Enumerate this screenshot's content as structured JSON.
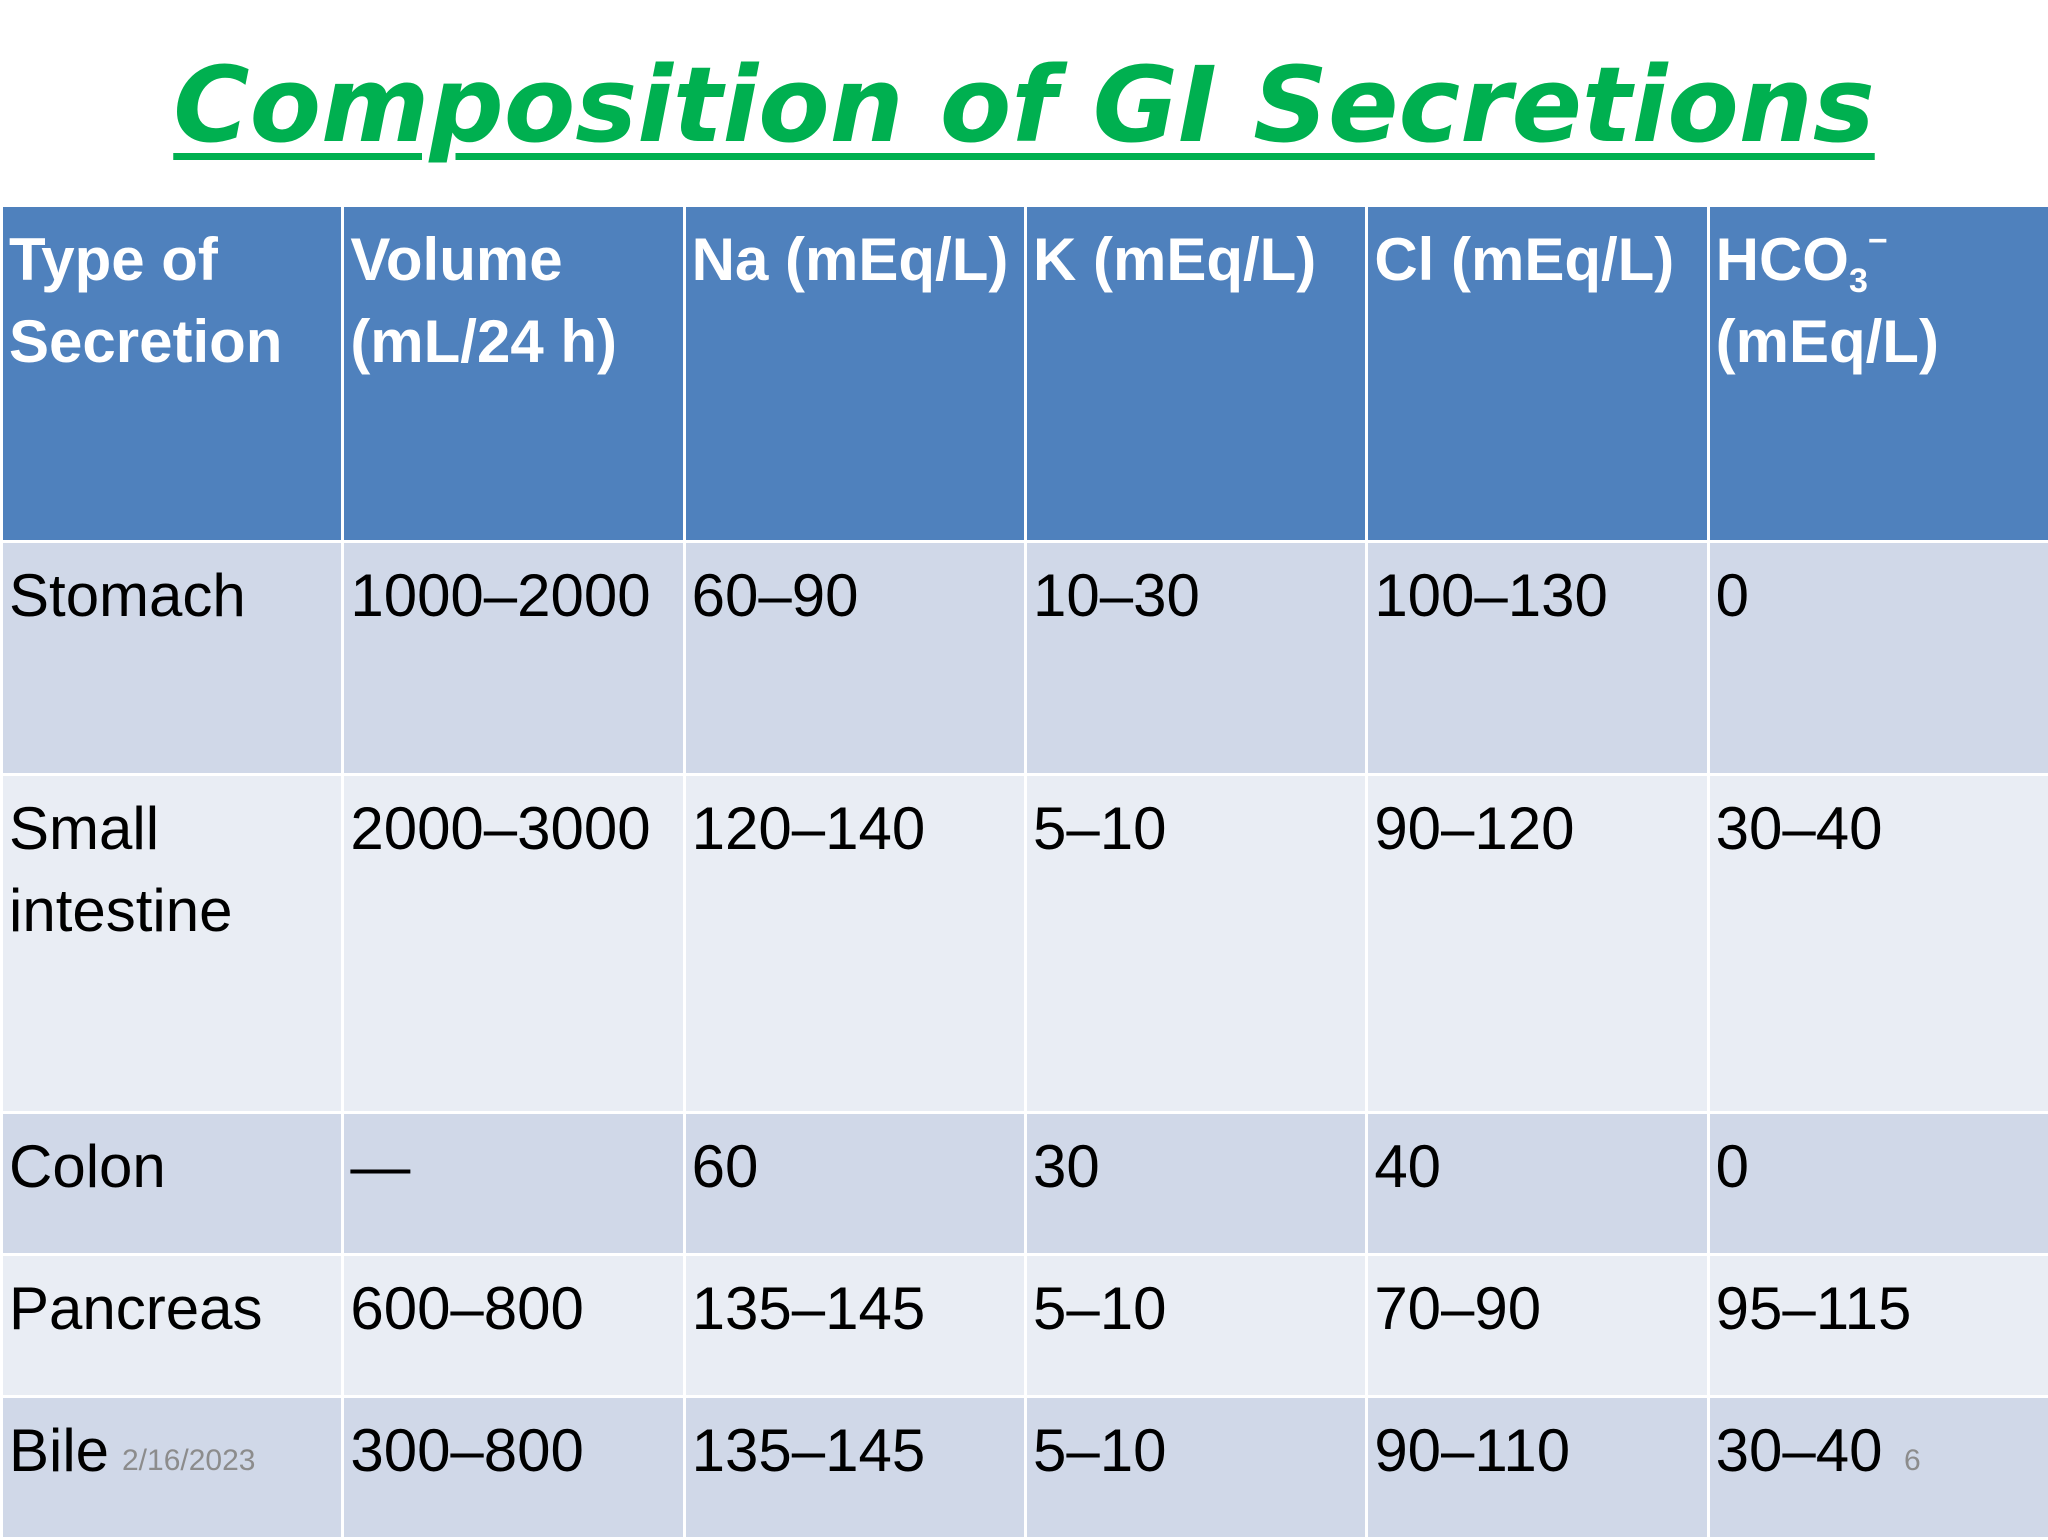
{
  "title": "Composition of GI Secretions",
  "table": {
    "headers": [
      "Type of Secretion",
      "Volume (mL/24 h)",
      "Na (mEq/L)",
      "K (mEq/L)",
      "Cl (mEq/L)"
    ],
    "bicarbonate_header": {
      "formula": "HCO",
      "subscript": "3",
      "superscript": "−",
      "unit": "(mEq/L)"
    },
    "rows": [
      [
        "Stomach",
        "1000–2000",
        "60–90",
        "10–30",
        "100–130",
        "0"
      ],
      [
        "Small intestine",
        "2000–3000",
        "120–140",
        "5–10",
        "90–120",
        "30–40"
      ],
      [
        "Colon",
        "—",
        "60",
        "30",
        "40",
        "0"
      ],
      [
        "Pancreas",
        "600–800",
        "135–145",
        "5–10",
        "70–90",
        "95–115"
      ],
      [
        "Bile",
        "300–800",
        "135–145",
        "5–10",
        "90–110",
        "30–40"
      ]
    ]
  },
  "footer": {
    "date": "2/16/2023",
    "page_number": "6"
  },
  "colors": {
    "title": "#00b050",
    "header_bg": "#4f81bd",
    "row_dark": "#d0d8e8",
    "row_light": "#e9edf4"
  }
}
